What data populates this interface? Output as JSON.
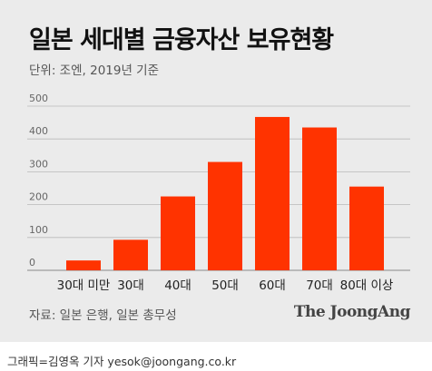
{
  "header": {
    "title": "일본 세대별 금융자산 보유현황",
    "subtitle": "단위: 조엔, 2019년 기준"
  },
  "footer": {
    "source": "자료: 일본 은행, 일본 총무성",
    "logo": "The JoongAng",
    "credit": "그래픽=김영옥 기자 yesok@joongang.co.kr"
  },
  "colors": {
    "bar": "#ff3300",
    "background": "#ebebeb"
  },
  "chart_data": {
    "type": "bar",
    "categories": [
      "30대 미만",
      "30대",
      "40대",
      "50대",
      "60대",
      "70대",
      "80대 이상"
    ],
    "values": [
      30,
      93,
      225,
      330,
      467,
      435,
      255
    ],
    "ylim": [
      0,
      500
    ],
    "yticks": [
      0,
      100,
      200,
      300,
      400,
      500
    ],
    "grid": true,
    "legend": "none"
  }
}
